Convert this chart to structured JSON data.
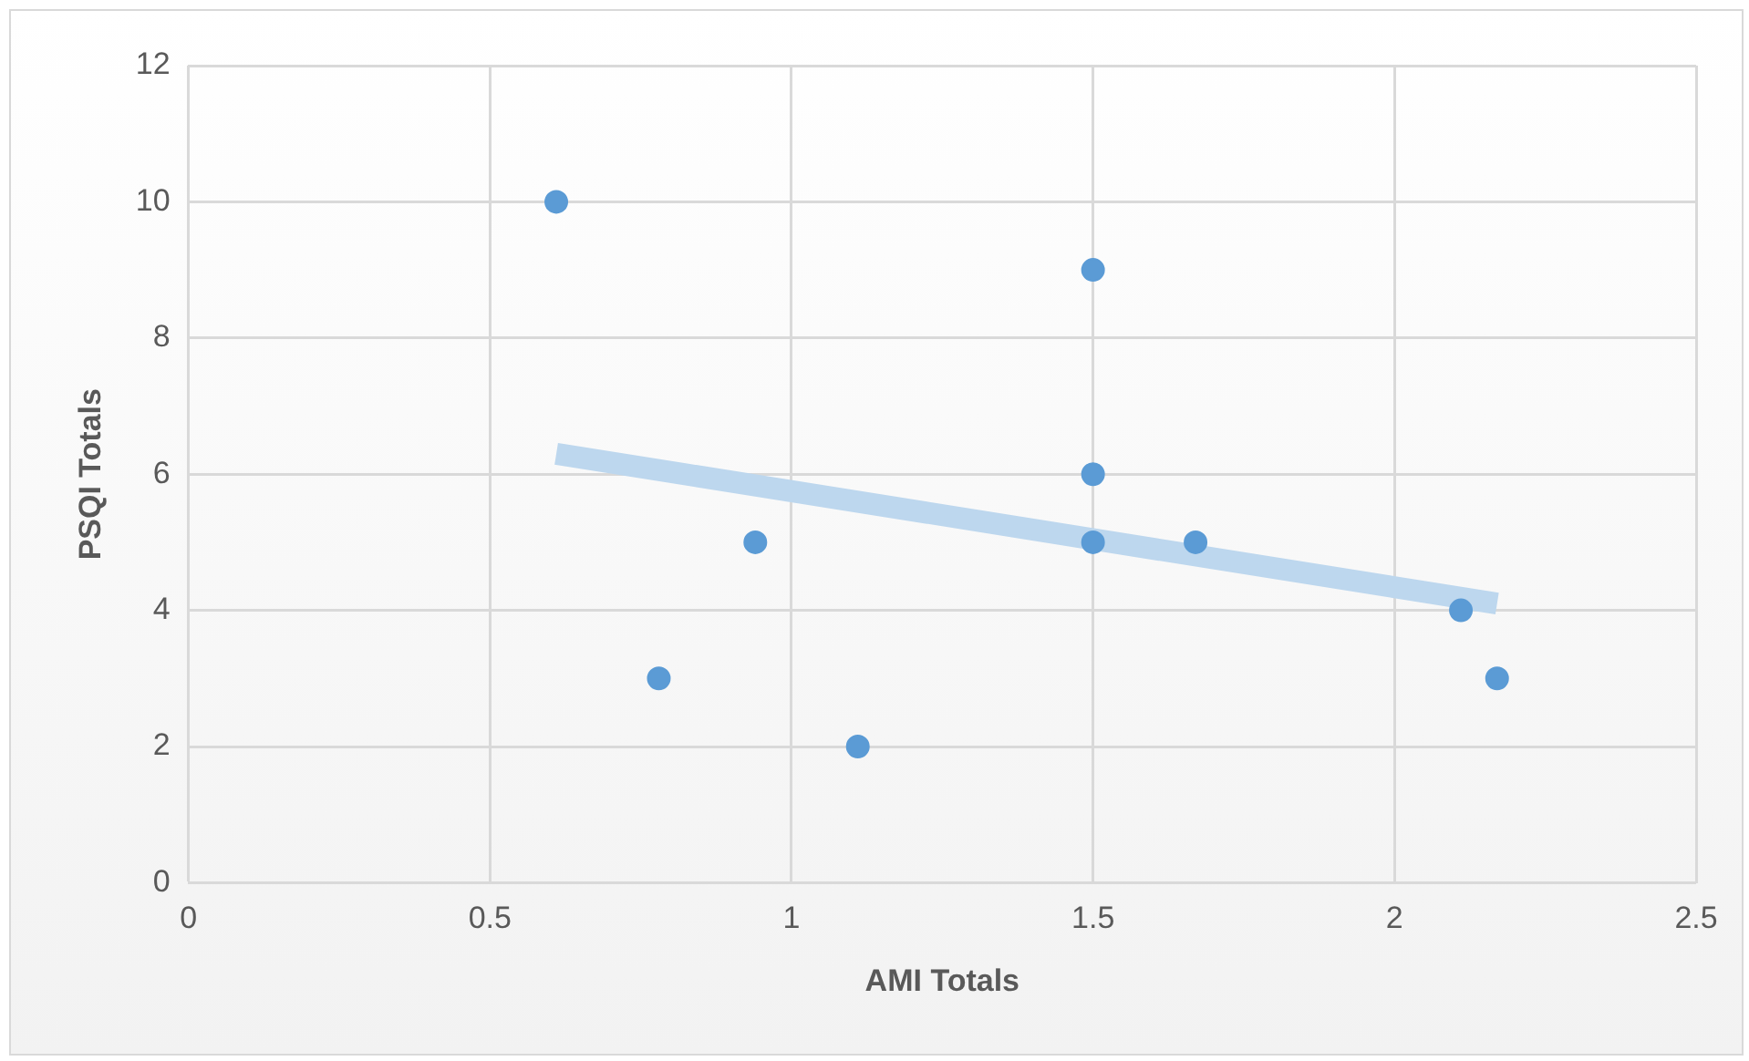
{
  "chart_data": {
    "type": "scatter",
    "xlabel": "AMI Totals",
    "ylabel": "PSQI Totals",
    "xlim": [
      0,
      2.5
    ],
    "xticks": [
      0,
      0.5,
      1,
      1.5,
      2,
      2.5
    ],
    "ylim": [
      0,
      12
    ],
    "yticks": [
      0,
      2,
      4,
      6,
      8,
      10,
      12
    ],
    "grid": true,
    "marker": "circle",
    "series": [
      {
        "type": "scatter",
        "color": "#5b9bd5",
        "x": [
          0.61,
          0.78,
          0.94,
          1.11,
          1.5,
          1.5,
          1.5,
          1.67,
          2.11,
          2.17
        ],
        "values": [
          10,
          3,
          5,
          2,
          9,
          6,
          5,
          5,
          4,
          3
        ]
      },
      {
        "type": "line",
        "color": "#bdd7ee",
        "marker": "none",
        "x": [
          0.61,
          2.17
        ],
        "values": [
          6.3,
          4.1
        ]
      }
    ]
  }
}
